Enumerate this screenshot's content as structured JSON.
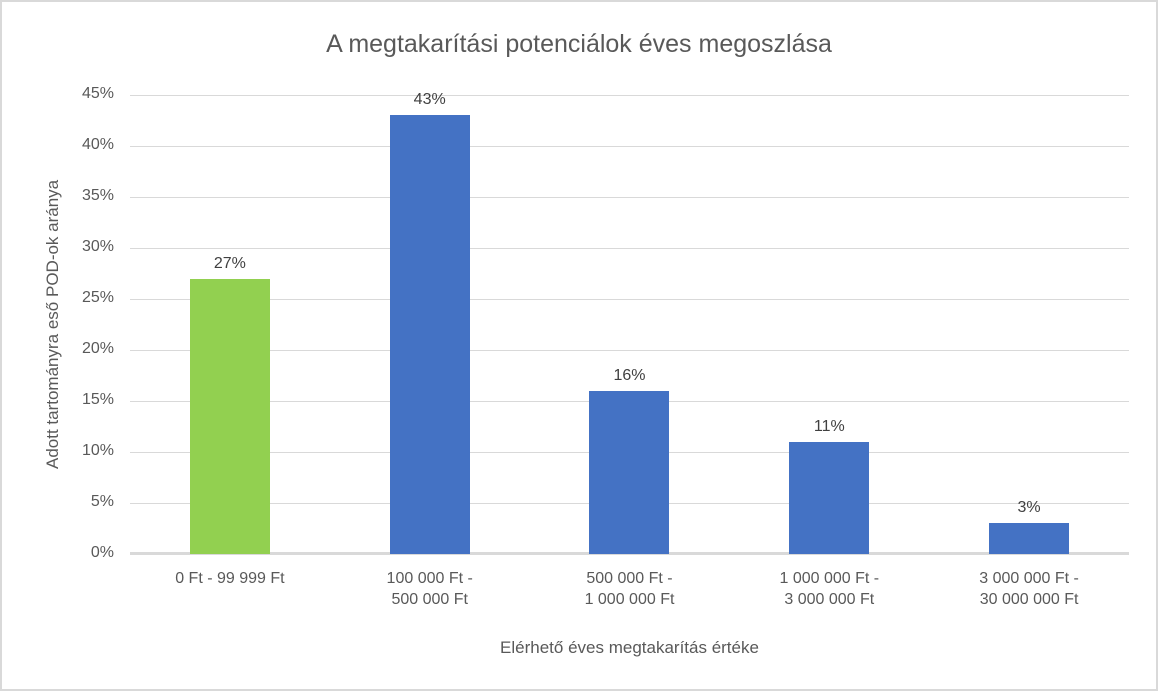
{
  "chart_data": {
    "type": "bar",
    "title": "A megtakarítási potenciálok éves megoszlása",
    "xlabel": "Elérhető éves megtakarítás értéke",
    "ylabel": "Adott tartományra eső POD-ok aránya",
    "categories": [
      "0 Ft - 99 999 Ft",
      "100 000 Ft -\n500 000 Ft",
      "500 000 Ft -\n1 000 000 Ft",
      "1 000 000 Ft -\n3 000 000 Ft",
      "3 000 000 Ft -\n30 000 000 Ft"
    ],
    "values": [
      27,
      43,
      16,
      11,
      3
    ],
    "bar_labels": [
      "27%",
      "43%",
      "16%",
      "11%",
      "3%"
    ],
    "bar_colors": [
      "#92D050",
      "#4472C4",
      "#4472C4",
      "#4472C4",
      "#4472C4"
    ],
    "ylim": [
      0,
      45
    ],
    "yticks": [
      {
        "value": 0,
        "label": "0%"
      },
      {
        "value": 5,
        "label": "5%"
      },
      {
        "value": 10,
        "label": "10%"
      },
      {
        "value": 15,
        "label": "15%"
      },
      {
        "value": 20,
        "label": "20%"
      },
      {
        "value": 25,
        "label": "25%"
      },
      {
        "value": 30,
        "label": "30%"
      },
      {
        "value": 35,
        "label": "35%"
      },
      {
        "value": 40,
        "label": "40%"
      },
      {
        "value": 45,
        "label": "45%"
      }
    ],
    "grid": "horizontal",
    "legend": "none",
    "style": {
      "grid_color": "#D9D9D9",
      "axis_text_color": "#595959",
      "data_label_color": "#404040",
      "frame_border_color": "#D9D9D9",
      "background": "#FFFFFF"
    }
  }
}
